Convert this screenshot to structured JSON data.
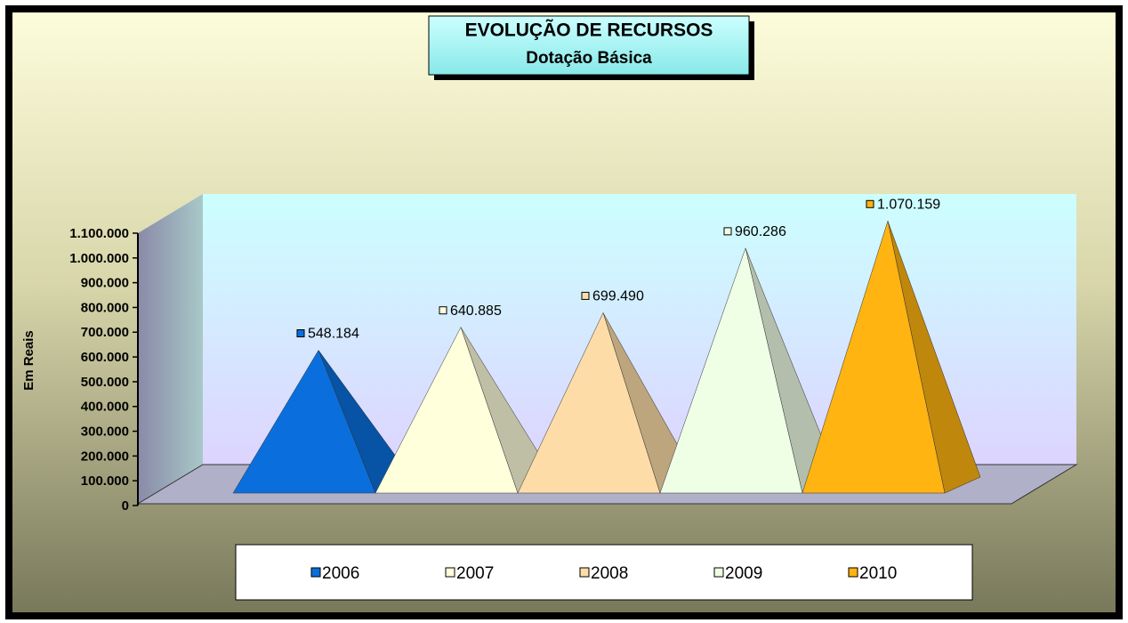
{
  "chart_data": {
    "type": "pyramid",
    "title": "EVOLUÇÃO DE RECURSOS",
    "subtitle": "Dotação Básica",
    "y_label": "Em Reais",
    "series": [
      {
        "name": "2006",
        "color": "#0a6fdc",
        "values": [
          548184
        ],
        "value_labels": [
          "548.184"
        ]
      },
      {
        "name": "2007",
        "color": "#ffffdc",
        "values": [
          640885
        ],
        "value_labels": [
          "640.885"
        ]
      },
      {
        "name": "2008",
        "color": "#fddca8",
        "values": [
          699490
        ],
        "value_labels": [
          "699.490"
        ]
      },
      {
        "name": "2009",
        "color": "#efffe6",
        "values": [
          960286
        ],
        "value_labels": [
          "960.286"
        ]
      },
      {
        "name": "2010",
        "color": "#ffb411",
        "values": [
          1070159
        ],
        "value_labels": [
          "1.070.159"
        ]
      }
    ],
    "ylim": [
      0,
      1100000
    ],
    "yticks": [
      0,
      {
        "value": 100000,
        "label": "100.000"
      },
      {
        "value": 200000,
        "label": "200.000"
      },
      {
        "value": 300000,
        "label": "300.000"
      },
      {
        "value": 400000,
        "label": "400.000"
      },
      {
        "value": 500000,
        "label": "500.000"
      },
      {
        "value": 600000,
        "label": "600.000"
      },
      {
        "value": 700000,
        "label": "700.000"
      },
      {
        "value": 800000,
        "label": "800.000"
      },
      {
        "value": 900000,
        "label": "900.000"
      },
      {
        "value": 1000000,
        "label": "1.000.000"
      },
      {
        "value": 1100000,
        "label": "1.100.000"
      }
    ],
    "legend": "bottom"
  }
}
